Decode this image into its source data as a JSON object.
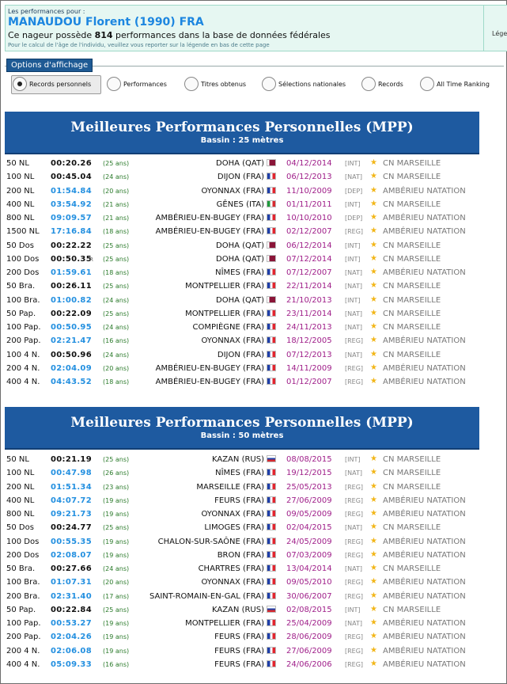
{
  "header": {
    "small": "Les performances pour :",
    "name": "MANAUDOU Florent (1990) FRA",
    "count_pre": "Ce nageur possède ",
    "count": "814",
    "count_post": " performances dans la base de données fédérales",
    "note": "Pour le calcul de l'âge de l'individu, veuillez vous reporter sur la légende en bas de cette page",
    "legend": "Légende"
  },
  "options": {
    "title": "Options d'affichage",
    "items": [
      "Records personnels",
      "Performances",
      "Titres obtenus",
      "Sélections nationales",
      "Records",
      "All Time Ranking"
    ],
    "selected": 0
  },
  "section25": {
    "title": "Meilleures Performances Personnelles (MPP)",
    "subtitle": "Bassin : 25 mètres",
    "rows": [
      {
        "ev": "50 NL",
        "tm": "00:20.26",
        "blue": false,
        "r": "",
        "age": "(25 ans)",
        "city": "DOHA",
        "country": "(QAT)",
        "flag": "qat",
        "date": "04/12/2014",
        "lvl": "[INT]",
        "club": "CN MARSEILLE"
      },
      {
        "ev": "100 NL",
        "tm": "00:45.04",
        "blue": false,
        "r": "",
        "age": "(24 ans)",
        "city": "DIJON",
        "country": "(FRA)",
        "flag": "fra",
        "date": "06/12/2013",
        "lvl": "[NAT]",
        "club": "CN MARSEILLE"
      },
      {
        "ev": "200 NL",
        "tm": "01:54.84",
        "blue": true,
        "r": "",
        "age": "(20 ans)",
        "city": "OYONNAX",
        "country": "(FRA)",
        "flag": "fra",
        "date": "11/10/2009",
        "lvl": "[DEP]",
        "club": "AMBÉRIEU NATATION"
      },
      {
        "ev": "400 NL",
        "tm": "03:54.92",
        "blue": true,
        "r": "",
        "age": "(21 ans)",
        "city": "GÊNES",
        "country": "(ITA)",
        "flag": "ita",
        "date": "01/11/2011",
        "lvl": "[INT]",
        "club": "CN MARSEILLE"
      },
      {
        "ev": "800 NL",
        "tm": "09:09.57",
        "blue": true,
        "r": "",
        "age": "(21 ans)",
        "city": "AMBÉRIEU-EN-BUGEY",
        "country": "(FRA)",
        "flag": "fra",
        "date": "10/10/2010",
        "lvl": "[DEP]",
        "club": "AMBÉRIEU NATATION"
      },
      {
        "ev": "1500 NL",
        "tm": "17:16.84",
        "blue": true,
        "r": "",
        "age": "(18 ans)",
        "city": "AMBÉRIEU-EN-BUGEY",
        "country": "(FRA)",
        "flag": "fra",
        "date": "02/12/2007",
        "lvl": "[REG]",
        "club": "AMBÉRIEU NATATION"
      },
      {
        "ev": "50 Dos",
        "tm": "00:22.22",
        "blue": false,
        "r": "",
        "age": "(25 ans)",
        "city": "DOHA",
        "country": "(QAT)",
        "flag": "qat",
        "date": "06/12/2014",
        "lvl": "[INT]",
        "club": "CN MARSEILLE"
      },
      {
        "ev": "100 Dos",
        "tm": "00:50.35",
        "blue": false,
        "r": "R",
        "age": "(25 ans)",
        "city": "DOHA",
        "country": "(QAT)",
        "flag": "qat",
        "date": "07/12/2014",
        "lvl": "[INT]",
        "club": "CN MARSEILLE"
      },
      {
        "ev": "200 Dos",
        "tm": "01:59.61",
        "blue": true,
        "r": "",
        "age": "(18 ans)",
        "city": "NÎMES",
        "country": "(FRA)",
        "flag": "fra",
        "date": "07/12/2007",
        "lvl": "[NAT]",
        "club": "AMBÉRIEU NATATION"
      },
      {
        "ev": "50 Bra.",
        "tm": "00:26.11",
        "blue": false,
        "r": "",
        "age": "(25 ans)",
        "city": "MONTPELLIER",
        "country": "(FRA)",
        "flag": "fra",
        "date": "22/11/2014",
        "lvl": "[NAT]",
        "club": "CN MARSEILLE"
      },
      {
        "ev": "100 Bra.",
        "tm": "01:00.82",
        "blue": true,
        "r": "",
        "age": "(24 ans)",
        "city": "DOHA",
        "country": "(QAT)",
        "flag": "qat",
        "date": "21/10/2013",
        "lvl": "[INT]",
        "club": "CN MARSEILLE"
      },
      {
        "ev": "50 Pap.",
        "tm": "00:22.09",
        "blue": false,
        "r": "",
        "age": "(25 ans)",
        "city": "MONTPELLIER",
        "country": "(FRA)",
        "flag": "fra",
        "date": "23/11/2014",
        "lvl": "[NAT]",
        "club": "CN MARSEILLE"
      },
      {
        "ev": "100 Pap.",
        "tm": "00:50.95",
        "blue": true,
        "r": "",
        "age": "(24 ans)",
        "city": "COMPIÈGNE",
        "country": "(FRA)",
        "flag": "fra",
        "date": "24/11/2013",
        "lvl": "[NAT]",
        "club": "CN MARSEILLE"
      },
      {
        "ev": "200 Pap.",
        "tm": "02:21.47",
        "blue": true,
        "r": "",
        "age": "(16 ans)",
        "city": "OYONNAX",
        "country": "(FRA)",
        "flag": "fra",
        "date": "18/12/2005",
        "lvl": "[REG]",
        "club": "AMBÉRIEU NATATION"
      },
      {
        "ev": "100 4 N.",
        "tm": "00:50.96",
        "blue": false,
        "r": "",
        "age": "(24 ans)",
        "city": "DIJON",
        "country": "(FRA)",
        "flag": "fra",
        "date": "07/12/2013",
        "lvl": "[NAT]",
        "club": "CN MARSEILLE"
      },
      {
        "ev": "200 4 N.",
        "tm": "02:04.09",
        "blue": true,
        "r": "",
        "age": "(20 ans)",
        "city": "AMBÉRIEU-EN-BUGEY",
        "country": "(FRA)",
        "flag": "fra",
        "date": "14/11/2009",
        "lvl": "[REG]",
        "club": "AMBÉRIEU NATATION"
      },
      {
        "ev": "400 4 N.",
        "tm": "04:43.52",
        "blue": true,
        "r": "",
        "age": "(18 ans)",
        "city": "AMBÉRIEU-EN-BUGEY",
        "country": "(FRA)",
        "flag": "fra",
        "date": "01/12/2007",
        "lvl": "[REG]",
        "club": "AMBÉRIEU NATATION"
      }
    ]
  },
  "section50": {
    "title": "Meilleures Performances Personnelles (MPP)",
    "subtitle": "Bassin : 50 mètres",
    "rows": [
      {
        "ev": "50 NL",
        "tm": "00:21.19",
        "blue": false,
        "r": "",
        "age": "(25 ans)",
        "city": "KAZAN",
        "country": "(RUS)",
        "flag": "rus",
        "date": "08/08/2015",
        "lvl": "[INT]",
        "club": "CN MARSEILLE"
      },
      {
        "ev": "100 NL",
        "tm": "00:47.98",
        "blue": true,
        "r": "",
        "age": "(26 ans)",
        "city": "NÎMES",
        "country": "(FRA)",
        "flag": "fra",
        "date": "19/12/2015",
        "lvl": "[NAT]",
        "club": "CN MARSEILLE"
      },
      {
        "ev": "200 NL",
        "tm": "01:51.34",
        "blue": true,
        "r": "",
        "age": "(23 ans)",
        "city": "MARSEILLE",
        "country": "(FRA)",
        "flag": "fra",
        "date": "25/05/2013",
        "lvl": "[REG]",
        "club": "CN MARSEILLE"
      },
      {
        "ev": "400 NL",
        "tm": "04:07.72",
        "blue": true,
        "r": "",
        "age": "(19 ans)",
        "city": "FEURS",
        "country": "(FRA)",
        "flag": "fra",
        "date": "27/06/2009",
        "lvl": "[REG]",
        "club": "AMBÉRIEU NATATION"
      },
      {
        "ev": "800 NL",
        "tm": "09:21.73",
        "blue": true,
        "r": "",
        "age": "(19 ans)",
        "city": "OYONNAX",
        "country": "(FRA)",
        "flag": "fra",
        "date": "09/05/2009",
        "lvl": "[REG]",
        "club": "AMBÉRIEU NATATION"
      },
      {
        "ev": "50 Dos",
        "tm": "00:24.77",
        "blue": false,
        "r": "",
        "age": "(25 ans)",
        "city": "LIMOGES",
        "country": "(FRA)",
        "flag": "fra",
        "date": "02/04/2015",
        "lvl": "[NAT]",
        "club": "CN MARSEILLE"
      },
      {
        "ev": "100 Dos",
        "tm": "00:55.35",
        "blue": true,
        "r": "",
        "age": "(19 ans)",
        "city": "CHALON-SUR-SAÔNE",
        "country": "(FRA)",
        "flag": "fra",
        "date": "24/05/2009",
        "lvl": "[REG]",
        "club": "AMBÉRIEU NATATION"
      },
      {
        "ev": "200 Dos",
        "tm": "02:08.07",
        "blue": true,
        "r": "",
        "age": "(19 ans)",
        "city": "BRON",
        "country": "(FRA)",
        "flag": "fra",
        "date": "07/03/2009",
        "lvl": "[REG]",
        "club": "AMBÉRIEU NATATION"
      },
      {
        "ev": "50 Bra.",
        "tm": "00:27.66",
        "blue": false,
        "r": "",
        "age": "(24 ans)",
        "city": "CHARTRES",
        "country": "(FRA)",
        "flag": "fra",
        "date": "13/04/2014",
        "lvl": "[NAT]",
        "club": "CN MARSEILLE"
      },
      {
        "ev": "100 Bra.",
        "tm": "01:07.31",
        "blue": true,
        "r": "",
        "age": "(20 ans)",
        "city": "OYONNAX",
        "country": "(FRA)",
        "flag": "fra",
        "date": "09/05/2010",
        "lvl": "[REG]",
        "club": "AMBÉRIEU NATATION"
      },
      {
        "ev": "200 Bra.",
        "tm": "02:31.40",
        "blue": true,
        "r": "",
        "age": "(17 ans)",
        "city": "SAINT-ROMAIN-EN-GAL",
        "country": "(FRA)",
        "flag": "fra",
        "date": "30/06/2007",
        "lvl": "[REG]",
        "club": "AMBÉRIEU NATATION"
      },
      {
        "ev": "50 Pap.",
        "tm": "00:22.84",
        "blue": false,
        "r": "",
        "age": "(25 ans)",
        "city": "KAZAN",
        "country": "(RUS)",
        "flag": "rus",
        "date": "02/08/2015",
        "lvl": "[INT]",
        "club": "CN MARSEILLE"
      },
      {
        "ev": "100 Pap.",
        "tm": "00:53.27",
        "blue": true,
        "r": "",
        "age": "(19 ans)",
        "city": "MONTPELLIER",
        "country": "(FRA)",
        "flag": "fra",
        "date": "25/04/2009",
        "lvl": "[NAT]",
        "club": "AMBÉRIEU NATATION"
      },
      {
        "ev": "200 Pap.",
        "tm": "02:04.26",
        "blue": true,
        "r": "",
        "age": "(19 ans)",
        "city": "FEURS",
        "country": "(FRA)",
        "flag": "fra",
        "date": "28/06/2009",
        "lvl": "[REG]",
        "club": "AMBÉRIEU NATATION"
      },
      {
        "ev": "200 4 N.",
        "tm": "02:06.08",
        "blue": true,
        "r": "",
        "age": "(19 ans)",
        "city": "FEURS",
        "country": "(FRA)",
        "flag": "fra",
        "date": "27/06/2009",
        "lvl": "[REG]",
        "club": "AMBÉRIEU NATATION"
      },
      {
        "ev": "400 4 N.",
        "tm": "05:09.33",
        "blue": true,
        "r": "",
        "age": "(16 ans)",
        "city": "FEURS",
        "country": "(FRA)",
        "flag": "fra",
        "date": "24/06/2006",
        "lvl": "[REG]",
        "club": "AMBÉRIEU NATATION"
      }
    ]
  }
}
